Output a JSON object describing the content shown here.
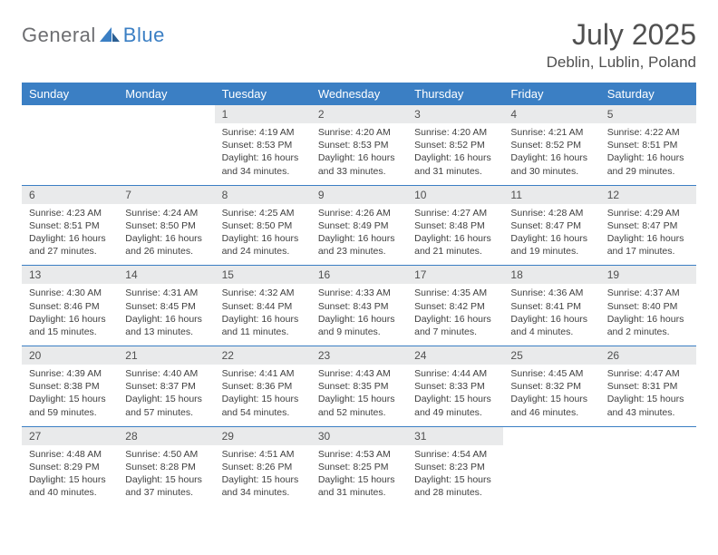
{
  "logo": {
    "word1": "General",
    "word2": "Blue"
  },
  "title": "July 2025",
  "location": "Deblin, Lublin, Poland",
  "colors": {
    "header_bg": "#3b7fc4",
    "daynum_bg": "#e9eaeb",
    "text": "#505050"
  },
  "day_headers": [
    "Sunday",
    "Monday",
    "Tuesday",
    "Wednesday",
    "Thursday",
    "Friday",
    "Saturday"
  ],
  "weeks": [
    [
      null,
      null,
      {
        "n": "1",
        "sunrise": "4:19 AM",
        "sunset": "8:53 PM",
        "daylight": "16 hours and 34 minutes."
      },
      {
        "n": "2",
        "sunrise": "4:20 AM",
        "sunset": "8:53 PM",
        "daylight": "16 hours and 33 minutes."
      },
      {
        "n": "3",
        "sunrise": "4:20 AM",
        "sunset": "8:52 PM",
        "daylight": "16 hours and 31 minutes."
      },
      {
        "n": "4",
        "sunrise": "4:21 AM",
        "sunset": "8:52 PM",
        "daylight": "16 hours and 30 minutes."
      },
      {
        "n": "5",
        "sunrise": "4:22 AM",
        "sunset": "8:51 PM",
        "daylight": "16 hours and 29 minutes."
      }
    ],
    [
      {
        "n": "6",
        "sunrise": "4:23 AM",
        "sunset": "8:51 PM",
        "daylight": "16 hours and 27 minutes."
      },
      {
        "n": "7",
        "sunrise": "4:24 AM",
        "sunset": "8:50 PM",
        "daylight": "16 hours and 26 minutes."
      },
      {
        "n": "8",
        "sunrise": "4:25 AM",
        "sunset": "8:50 PM",
        "daylight": "16 hours and 24 minutes."
      },
      {
        "n": "9",
        "sunrise": "4:26 AM",
        "sunset": "8:49 PM",
        "daylight": "16 hours and 23 minutes."
      },
      {
        "n": "10",
        "sunrise": "4:27 AM",
        "sunset": "8:48 PM",
        "daylight": "16 hours and 21 minutes."
      },
      {
        "n": "11",
        "sunrise": "4:28 AM",
        "sunset": "8:47 PM",
        "daylight": "16 hours and 19 minutes."
      },
      {
        "n": "12",
        "sunrise": "4:29 AM",
        "sunset": "8:47 PM",
        "daylight": "16 hours and 17 minutes."
      }
    ],
    [
      {
        "n": "13",
        "sunrise": "4:30 AM",
        "sunset": "8:46 PM",
        "daylight": "16 hours and 15 minutes."
      },
      {
        "n": "14",
        "sunrise": "4:31 AM",
        "sunset": "8:45 PM",
        "daylight": "16 hours and 13 minutes."
      },
      {
        "n": "15",
        "sunrise": "4:32 AM",
        "sunset": "8:44 PM",
        "daylight": "16 hours and 11 minutes."
      },
      {
        "n": "16",
        "sunrise": "4:33 AM",
        "sunset": "8:43 PM",
        "daylight": "16 hours and 9 minutes."
      },
      {
        "n": "17",
        "sunrise": "4:35 AM",
        "sunset": "8:42 PM",
        "daylight": "16 hours and 7 minutes."
      },
      {
        "n": "18",
        "sunrise": "4:36 AM",
        "sunset": "8:41 PM",
        "daylight": "16 hours and 4 minutes."
      },
      {
        "n": "19",
        "sunrise": "4:37 AM",
        "sunset": "8:40 PM",
        "daylight": "16 hours and 2 minutes."
      }
    ],
    [
      {
        "n": "20",
        "sunrise": "4:39 AM",
        "sunset": "8:38 PM",
        "daylight": "15 hours and 59 minutes."
      },
      {
        "n": "21",
        "sunrise": "4:40 AM",
        "sunset": "8:37 PM",
        "daylight": "15 hours and 57 minutes."
      },
      {
        "n": "22",
        "sunrise": "4:41 AM",
        "sunset": "8:36 PM",
        "daylight": "15 hours and 54 minutes."
      },
      {
        "n": "23",
        "sunrise": "4:43 AM",
        "sunset": "8:35 PM",
        "daylight": "15 hours and 52 minutes."
      },
      {
        "n": "24",
        "sunrise": "4:44 AM",
        "sunset": "8:33 PM",
        "daylight": "15 hours and 49 minutes."
      },
      {
        "n": "25",
        "sunrise": "4:45 AM",
        "sunset": "8:32 PM",
        "daylight": "15 hours and 46 minutes."
      },
      {
        "n": "26",
        "sunrise": "4:47 AM",
        "sunset": "8:31 PM",
        "daylight": "15 hours and 43 minutes."
      }
    ],
    [
      {
        "n": "27",
        "sunrise": "4:48 AM",
        "sunset": "8:29 PM",
        "daylight": "15 hours and 40 minutes."
      },
      {
        "n": "28",
        "sunrise": "4:50 AM",
        "sunset": "8:28 PM",
        "daylight": "15 hours and 37 minutes."
      },
      {
        "n": "29",
        "sunrise": "4:51 AM",
        "sunset": "8:26 PM",
        "daylight": "15 hours and 34 minutes."
      },
      {
        "n": "30",
        "sunrise": "4:53 AM",
        "sunset": "8:25 PM",
        "daylight": "15 hours and 31 minutes."
      },
      {
        "n": "31",
        "sunrise": "4:54 AM",
        "sunset": "8:23 PM",
        "daylight": "15 hours and 28 minutes."
      },
      null,
      null
    ]
  ],
  "labels": {
    "sunrise": "Sunrise:",
    "sunset": "Sunset:",
    "daylight": "Daylight:"
  }
}
